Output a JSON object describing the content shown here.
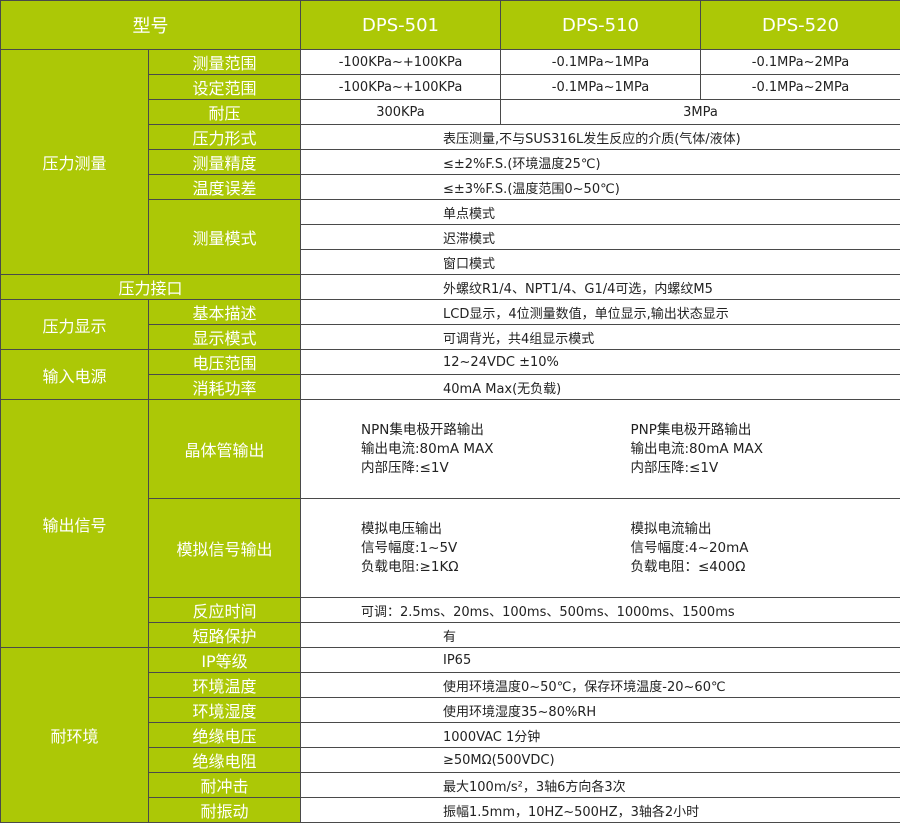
{
  "header": {
    "model_label": "型号",
    "models": [
      "DPS-501",
      "DPS-510",
      "DPS-520"
    ]
  },
  "pressure": {
    "category": "压力测量",
    "measure_range": {
      "label": "测量范围",
      "values": [
        "-100KPa~+100KPa",
        "-0.1MPa~1MPa",
        "-0.1MPa~2MPa"
      ]
    },
    "set_range": {
      "label": "设定范围",
      "values": [
        "-100KPa~+100KPa",
        "-0.1MPa~1MPa",
        "-0.1MPa~2MPa"
      ]
    },
    "withstand": {
      "label": "耐压",
      "values": [
        "300KPa",
        "3MPa"
      ]
    },
    "form": {
      "label": "压力形式",
      "value": "表压测量,不与SUS316L发生反应的介质(气体/液体)"
    },
    "accuracy": {
      "label": "测量精度",
      "value": "≤±2%F.S.(环境温度25℃)"
    },
    "temp_error": {
      "label": "温度误差",
      "value": "≤±3%F.S.(温度范围0~50℃)"
    },
    "mode": {
      "label": "测量模式",
      "values": [
        "单点模式",
        "迟滞模式",
        "窗口模式"
      ]
    }
  },
  "port": {
    "label": "压力接口",
    "value": "外螺纹R1/4、NPT1/4、G1/4可选，内螺纹M5"
  },
  "display": {
    "category": "压力显示",
    "basic": {
      "label": "基本描述",
      "value": "LCD显示，4位测量数值，单位显示,输出状态显示"
    },
    "mode": {
      "label": "显示模式",
      "value": "可调背光，共4组显示模式"
    }
  },
  "power": {
    "category": "输入电源",
    "voltage": {
      "label": "电压范围",
      "value": "12~24VDC ±10%"
    },
    "consumption": {
      "label": "消耗功率",
      "value": "40mA Max(无负载)"
    }
  },
  "output": {
    "category": "输出信号",
    "transistor": {
      "label": "晶体管输出",
      "npn": [
        "NPN集电极开路输出",
        "输出电流:80mA MAX",
        "内部压降:≤1V"
      ],
      "pnp": [
        "PNP集电极开路输出",
        "输出电流:80mA MAX",
        "内部压降:≤1V"
      ]
    },
    "analog": {
      "label": "模拟信号输出",
      "voltage": [
        "模拟电压输出",
        "信号幅度:1~5V",
        "负载电阻:≥1KΩ"
      ],
      "current": [
        "模拟电流输出",
        "信号幅度:4~20mA",
        "负载电阻：≤400Ω"
      ]
    },
    "response": {
      "label": "反应时间",
      "value": "可调：2.5ms、20ms、100ms、500ms、1000ms、1500ms"
    },
    "short": {
      "label": "短路保护",
      "value": "有"
    }
  },
  "env": {
    "category": "耐环境",
    "ip": {
      "label": "IP等级",
      "value": "IP65"
    },
    "temp": {
      "label": "环境温度",
      "value": "使用环境温度0~50℃，保存环境温度-20~60℃"
    },
    "humidity": {
      "label": "环境湿度",
      "value": "使用环境湿度35~80%RH"
    },
    "insul_v": {
      "label": "绝缘电压",
      "value": "1000VAC 1分钟"
    },
    "insul_r": {
      "label": "绝缘电阻",
      "value": "≥50MΩ(500VDC)"
    },
    "shock": {
      "label": "耐冲击",
      "value": "最大100m/s²，3轴6方向各3次"
    },
    "vibration": {
      "label": "耐振动",
      "value": "振幅1.5mm，10HZ~500HZ，3轴各2小时"
    }
  },
  "colors": {
    "accent": "#acc806",
    "border": "#4a4a4a"
  }
}
